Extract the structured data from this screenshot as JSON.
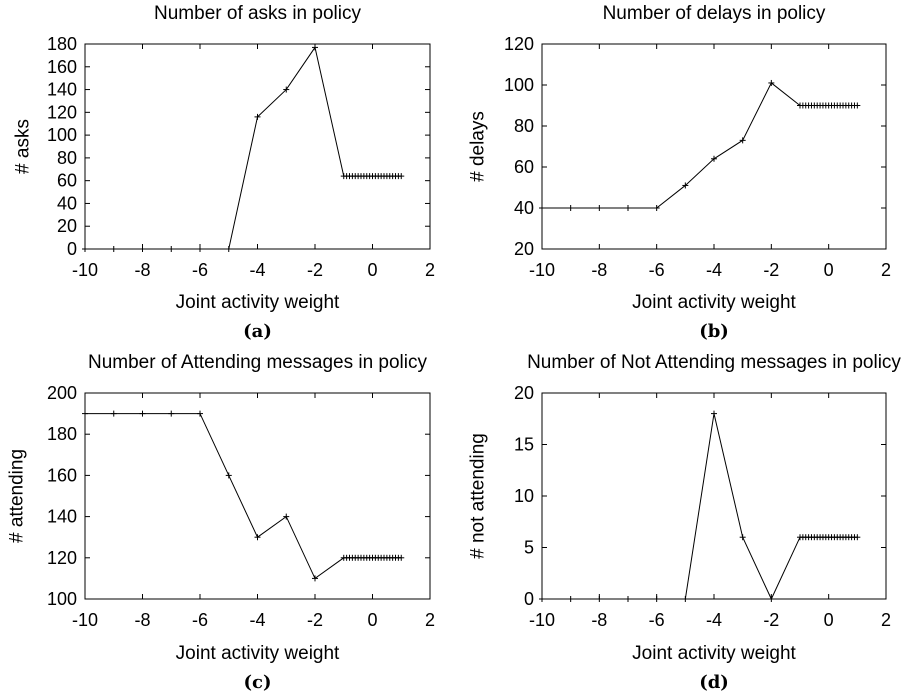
{
  "chart_data": [
    {
      "type": "line",
      "caption": "(a)",
      "title": "Number of asks in policy",
      "xlabel": "Joint activity weight",
      "ylabel": "# asks",
      "xlim": [
        -10,
        2
      ],
      "ylim": [
        0,
        180
      ],
      "xticks": [
        -10,
        -8,
        -6,
        -4,
        -2,
        0,
        2
      ],
      "yticks": [
        0,
        20,
        40,
        60,
        80,
        100,
        120,
        140,
        160,
        180
      ],
      "grid": false,
      "series": [
        {
          "x": [
            -10,
            -9,
            -8,
            -7,
            -6,
            -5,
            -4,
            -3,
            -2,
            -1,
            -0.9,
            -0.8,
            -0.7,
            -0.6,
            -0.5,
            -0.4,
            -0.3,
            -0.2,
            -0.1,
            0,
            0.1,
            0.2,
            0.3,
            0.4,
            0.5,
            0.6,
            0.7,
            0.8,
            0.9,
            1
          ],
          "y": [
            0,
            0,
            0,
            0,
            0,
            0,
            116,
            140,
            177,
            64,
            64,
            64,
            64,
            64,
            64,
            64,
            64,
            64,
            64,
            64,
            64,
            64,
            64,
            64,
            64,
            64,
            64,
            64,
            64,
            64
          ]
        }
      ]
    },
    {
      "type": "line",
      "caption": "(b)",
      "title": "Number of delays in policy",
      "xlabel": "Joint activity weight",
      "ylabel": "# delays",
      "xlim": [
        -10,
        2
      ],
      "ylim": [
        20,
        120
      ],
      "xticks": [
        -10,
        -8,
        -6,
        -4,
        -2,
        0,
        2
      ],
      "yticks": [
        20,
        40,
        60,
        80,
        100,
        120
      ],
      "grid": false,
      "series": [
        {
          "x": [
            -10,
            -9,
            -8,
            -7,
            -6,
            -5,
            -4,
            -3,
            -2,
            -1,
            -0.9,
            -0.8,
            -0.7,
            -0.6,
            -0.5,
            -0.4,
            -0.3,
            -0.2,
            -0.1,
            0,
            0.1,
            0.2,
            0.3,
            0.4,
            0.5,
            0.6,
            0.7,
            0.8,
            0.9,
            1
          ],
          "y": [
            40,
            40,
            40,
            40,
            40,
            51,
            64,
            73,
            101,
            90,
            90,
            90,
            90,
            90,
            90,
            90,
            90,
            90,
            90,
            90,
            90,
            90,
            90,
            90,
            90,
            90,
            90,
            90,
            90,
            90
          ]
        }
      ]
    },
    {
      "type": "line",
      "caption": "(c)",
      "title": "Number of Attending messages in policy",
      "xlabel": "Joint activity weight",
      "ylabel": "# attending",
      "xlim": [
        -10,
        2
      ],
      "ylim": [
        100,
        200
      ],
      "xticks": [
        -10,
        -8,
        -6,
        -4,
        -2,
        0,
        2
      ],
      "yticks": [
        100,
        120,
        140,
        160,
        180,
        200
      ],
      "grid": false,
      "series": [
        {
          "x": [
            -10,
            -9,
            -8,
            -7,
            -6,
            -5,
            -4,
            -3,
            -2,
            -1,
            -0.9,
            -0.8,
            -0.7,
            -0.6,
            -0.5,
            -0.4,
            -0.3,
            -0.2,
            -0.1,
            0,
            0.1,
            0.2,
            0.3,
            0.4,
            0.5,
            0.6,
            0.7,
            0.8,
            0.9,
            1
          ],
          "y": [
            190,
            190,
            190,
            190,
            190,
            160,
            130,
            140,
            110,
            120,
            120,
            120,
            120,
            120,
            120,
            120,
            120,
            120,
            120,
            120,
            120,
            120,
            120,
            120,
            120,
            120,
            120,
            120,
            120,
            120
          ]
        }
      ]
    },
    {
      "type": "line",
      "caption": "(d)",
      "title": "Number of Not Attending messages in policy",
      "xlabel": "Joint activity weight",
      "ylabel": "# not attending",
      "xlim": [
        -10,
        2
      ],
      "ylim": [
        0,
        20
      ],
      "xticks": [
        -10,
        -8,
        -6,
        -4,
        -2,
        0,
        2
      ],
      "yticks": [
        0,
        5,
        10,
        15,
        20
      ],
      "grid": false,
      "series": [
        {
          "x": [
            -10,
            -9,
            -8,
            -7,
            -6,
            -5,
            -4,
            -3,
            -2,
            -1,
            -0.9,
            -0.8,
            -0.7,
            -0.6,
            -0.5,
            -0.4,
            -0.3,
            -0.2,
            -0.1,
            0,
            0.1,
            0.2,
            0.3,
            0.4,
            0.5,
            0.6,
            0.7,
            0.8,
            0.9,
            1
          ],
          "y": [
            0,
            0,
            0,
            0,
            0,
            0,
            18,
            6,
            0,
            6,
            6,
            6,
            6,
            6,
            6,
            6,
            6,
            6,
            6,
            6,
            6,
            6,
            6,
            6,
            6,
            6,
            6,
            6,
            6,
            6
          ]
        }
      ]
    }
  ]
}
